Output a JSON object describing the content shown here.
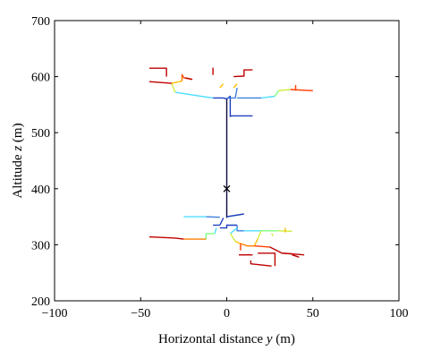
{
  "chart_data": {
    "type": "line",
    "xlabel_text": "Horizontal distance ",
    "xlabel_var": "y",
    "xlabel_unit": " (m)",
    "ylabel_text": "Altitude ",
    "ylabel_var": "z",
    "ylabel_unit": " (m)",
    "xlim": [
      -100,
      100
    ],
    "ylim": [
      200,
      700
    ],
    "xticks": [
      -100,
      -50,
      0,
      50,
      100
    ],
    "yticks": [
      200,
      300,
      400,
      500,
      600,
      700
    ],
    "xtick_labels": [
      "−100",
      "−50",
      "0",
      "50",
      "100"
    ],
    "ytick_labels": [
      "200",
      "300",
      "400",
      "500",
      "600",
      "700"
    ],
    "grid": false,
    "marker": {
      "x": 0,
      "y": 400,
      "symbol": "x",
      "color": "#000000"
    },
    "segments": [
      {
        "color": "#0b0b3f",
        "points": [
          [
            0,
            400
          ],
          [
            0,
            560
          ]
        ]
      },
      {
        "color": "#0b0b3f",
        "points": [
          [
            0,
            400
          ],
          [
            0,
            348
          ]
        ]
      },
      {
        "color": "#1f3fbf",
        "points": [
          [
            0,
            560
          ],
          [
            2,
            565
          ],
          [
            2,
            528
          ]
        ]
      },
      {
        "color": "#1f3fbf",
        "points": [
          [
            2,
            530
          ],
          [
            15,
            530
          ]
        ]
      },
      {
        "color": "#1f3fbf",
        "points": [
          [
            0,
            560
          ],
          [
            -2,
            562
          ],
          [
            -8,
            562
          ]
        ]
      },
      {
        "color": "#3f7fdf",
        "points": [
          [
            0,
            562
          ],
          [
            5,
            562
          ],
          [
            6,
            580
          ]
        ]
      },
      {
        "color": "#3f7fdf",
        "points": [
          [
            6,
            562
          ],
          [
            20,
            562
          ]
        ]
      },
      {
        "color": "#4fdfff",
        "points": [
          [
            -8,
            562
          ],
          [
            -15,
            565
          ],
          [
            -30,
            572
          ]
        ]
      },
      {
        "color": "#4fdfff",
        "points": [
          [
            20,
            562
          ],
          [
            28,
            565
          ]
        ]
      },
      {
        "color": "#7fff7f",
        "points": [
          [
            28,
            565
          ],
          [
            30,
            575
          ]
        ]
      },
      {
        "color": "#cfef3f",
        "points": [
          [
            -30,
            572
          ],
          [
            -32,
            588
          ]
        ]
      },
      {
        "color": "#cfef3f",
        "points": [
          [
            30,
            575
          ],
          [
            37,
            577
          ]
        ]
      },
      {
        "color": "#ffbf00",
        "points": [
          [
            -32,
            588
          ],
          [
            -26,
            592
          ]
        ]
      },
      {
        "color": "#ffbf00",
        "points": [
          [
            -4,
            580
          ],
          [
            -2,
            587
          ]
        ]
      },
      {
        "color": "#ffbf00",
        "points": [
          [
            4,
            580
          ],
          [
            6,
            587
          ]
        ]
      },
      {
        "color": "#ff7f00",
        "points": [
          [
            -26,
            592
          ],
          [
            -26,
            604
          ]
        ]
      },
      {
        "color": "#ff3f00",
        "points": [
          [
            37,
            577
          ],
          [
            50,
            575
          ]
        ]
      },
      {
        "color": "#ff3f00",
        "points": [
          [
            40,
            585
          ],
          [
            40,
            575
          ]
        ]
      },
      {
        "color": "#ff3f00",
        "points": [
          [
            -26,
            604
          ],
          [
            -25,
            598
          ],
          [
            -20,
            595
          ]
        ]
      },
      {
        "color": "#bf0000",
        "points": [
          [
            -32,
            588
          ],
          [
            -45,
            591
          ]
        ]
      },
      {
        "color": "#bf0000",
        "points": [
          [
            -35,
            600
          ],
          [
            -35,
            615
          ],
          [
            -45,
            615
          ]
        ]
      },
      {
        "color": "#bf0000",
        "points": [
          [
            -20,
            595
          ],
          [
            -24,
            598
          ]
        ]
      },
      {
        "color": "#bf0000",
        "points": [
          [
            -8,
            603
          ],
          [
            -8,
            616
          ]
        ]
      },
      {
        "color": "#bf0000",
        "points": [
          [
            4,
            600
          ],
          [
            10,
            601
          ],
          [
            10,
            612
          ],
          [
            15,
            612
          ]
        ]
      },
      {
        "color": "#1f3fbf",
        "points": [
          [
            0,
            350
          ],
          [
            10,
            355
          ]
        ]
      },
      {
        "color": "#1f3fbf",
        "points": [
          [
            -2,
            348
          ],
          [
            -4,
            335
          ]
        ]
      },
      {
        "color": "#1f3fbf",
        "points": [
          [
            -4,
            335
          ],
          [
            -8,
            335
          ]
        ]
      },
      {
        "color": "#1f3fbf",
        "points": [
          [
            -4,
            330
          ],
          [
            0,
            330
          ],
          [
            0,
            335
          ],
          [
            6,
            335
          ]
        ]
      },
      {
        "color": "#3f7fdf",
        "points": [
          [
            -4,
            349
          ],
          [
            -12,
            350
          ]
        ]
      },
      {
        "color": "#3f7fdf",
        "points": [
          [
            6,
            335
          ],
          [
            6,
            325
          ],
          [
            10,
            325
          ]
        ]
      },
      {
        "color": "#4fdfff",
        "points": [
          [
            -12,
            350
          ],
          [
            -25,
            350
          ]
        ]
      },
      {
        "color": "#4fdfff",
        "points": [
          [
            10,
            325
          ],
          [
            20,
            325
          ]
        ]
      },
      {
        "color": "#4fdfff",
        "points": [
          [
            2,
            320
          ],
          [
            6,
            330
          ]
        ]
      },
      {
        "color": "#4fdfff",
        "points": [
          [
            -6,
            330
          ],
          [
            -7,
            320
          ]
        ]
      },
      {
        "color": "#7fff7f",
        "points": [
          [
            20,
            325
          ],
          [
            30,
            325
          ]
        ]
      },
      {
        "color": "#7fff7f",
        "points": [
          [
            -7,
            320
          ],
          [
            -12,
            320
          ],
          [
            -12,
            310
          ]
        ]
      },
      {
        "color": "#cfef3f",
        "points": [
          [
            30,
            325
          ],
          [
            38,
            324
          ]
        ]
      },
      {
        "color": "#cfef3f",
        "points": [
          [
            20,
            325
          ],
          [
            18,
            310
          ]
        ]
      },
      {
        "color": "#cfef3f",
        "points": [
          [
            2,
            320
          ],
          [
            5,
            306
          ]
        ]
      },
      {
        "color": "#cfef3f",
        "points": [
          [
            26,
            320
          ],
          [
            27,
            316
          ]
        ]
      },
      {
        "color": "#ffbf00",
        "points": [
          [
            18,
            310
          ],
          [
            16,
            298
          ]
        ]
      },
      {
        "color": "#ffbf00",
        "points": [
          [
            5,
            306
          ],
          [
            8,
            302
          ]
        ]
      },
      {
        "color": "#ffbf00",
        "points": [
          [
            34,
            330
          ],
          [
            34,
            322
          ]
        ]
      },
      {
        "color": "#ff7f00",
        "points": [
          [
            8,
            302
          ],
          [
            12,
            298
          ],
          [
            16,
            298
          ]
        ]
      },
      {
        "color": "#ff7f00",
        "points": [
          [
            -12,
            310
          ],
          [
            -25,
            310
          ]
        ]
      },
      {
        "color": "#ff3f00",
        "points": [
          [
            16,
            298
          ],
          [
            25,
            296
          ]
        ]
      },
      {
        "color": "#ff3f00",
        "points": [
          [
            8,
            302
          ],
          [
            8,
            290
          ]
        ]
      },
      {
        "color": "#bf0000",
        "points": [
          [
            25,
            296
          ],
          [
            32,
            285
          ],
          [
            45,
            282
          ]
        ]
      },
      {
        "color": "#bf0000",
        "points": [
          [
            -25,
            310
          ],
          [
            -30,
            312
          ],
          [
            -45,
            314
          ]
        ]
      },
      {
        "color": "#bf0000",
        "points": [
          [
            18,
            285
          ],
          [
            28,
            285
          ],
          [
            28,
            262
          ]
        ]
      },
      {
        "color": "#bf0000",
        "points": [
          [
            14,
            272
          ],
          [
            14,
            266
          ],
          [
            26,
            262
          ]
        ]
      },
      {
        "color": "#bf0000",
        "points": [
          [
            32,
            285
          ],
          [
            38,
            284
          ]
        ]
      },
      {
        "color": "#bf0000",
        "points": [
          [
            38,
            282
          ],
          [
            42,
            278
          ]
        ]
      },
      {
        "color": "#bf0000",
        "points": [
          [
            7,
            282
          ],
          [
            15,
            282
          ]
        ]
      }
    ]
  }
}
